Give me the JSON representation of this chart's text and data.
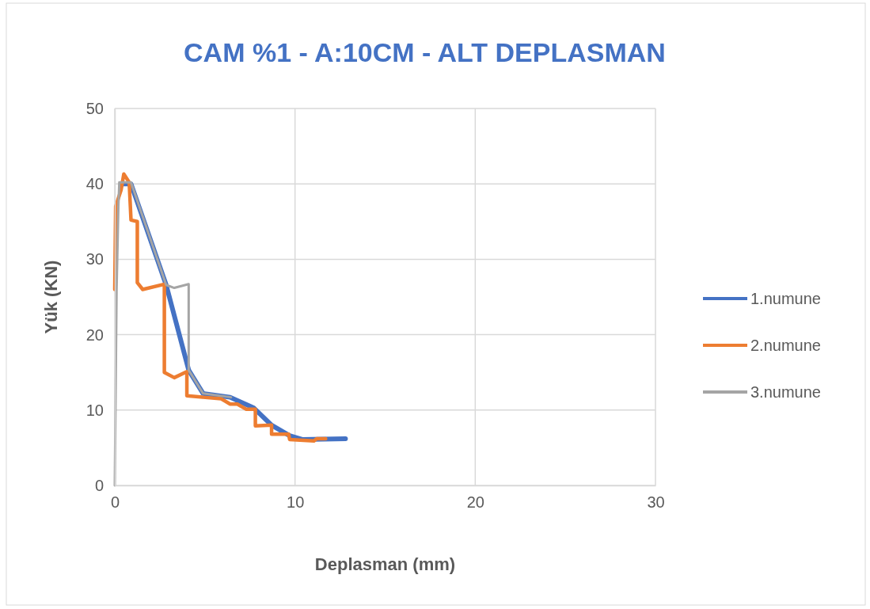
{
  "chart_data": {
    "type": "line",
    "title": "CAM %1 - A:10CM - ALT DEPLASMAN",
    "xlabel": "Deplasman (mm)",
    "ylabel": "Yük (KN)",
    "xlim": [
      0,
      30
    ],
    "xticks": [
      0,
      10,
      20,
      30
    ],
    "ylim": [
      0,
      50
    ],
    "yticks": [
      0,
      10,
      20,
      30,
      40,
      50
    ],
    "grid": true,
    "legend": "right",
    "marker": "none",
    "line_style": "solid",
    "series": [
      {
        "name": "1.numune",
        "color": "#4472c4",
        "x": [
          0.4,
          0.9,
          2.85,
          4.1,
          4.9,
          6.4,
          7.7,
          8.7,
          9.7,
          10.4,
          12.8
        ],
        "values": [
          40,
          40,
          26.6,
          15.3,
          12.2,
          11.7,
          10.3,
          8.0,
          6.6,
          6.1,
          6.2
        ]
      },
      {
        "name": "2.numune",
        "color": "#ed7d31",
        "x": [
          0,
          0.05,
          0.35,
          0.5,
          0.8,
          0.9,
          1.25,
          1.25,
          1.55,
          2.75,
          2.75,
          3.3,
          4.0,
          4.0,
          4.9,
          5.9,
          6.4,
          6.8,
          7.3,
          7.8,
          7.8,
          8.7,
          8.7,
          9.65,
          9.7,
          11.05,
          11.2,
          11.7
        ],
        "values": [
          26,
          37,
          39.2,
          41.3,
          40.2,
          35.2,
          35,
          26.9,
          26.0,
          26.7,
          15.0,
          14.3,
          15.1,
          11.9,
          11.7,
          11.5,
          10.8,
          10.8,
          10.1,
          10.1,
          7.9,
          8.0,
          6.8,
          6.8,
          6.1,
          5.9,
          6.2,
          6.2
        ]
      },
      {
        "name": "3.numune",
        "color": "#a5a5a5",
        "x": [
          0,
          0.1,
          0.2,
          0.25,
          0.9,
          2.85,
          3.3,
          4.1,
          4.1,
          4.9,
          6.45
        ],
        "values": [
          0,
          26,
          37,
          40.2,
          40.2,
          26.6,
          26.2,
          26.7,
          15.3,
          12.2,
          11.7
        ]
      }
    ]
  }
}
